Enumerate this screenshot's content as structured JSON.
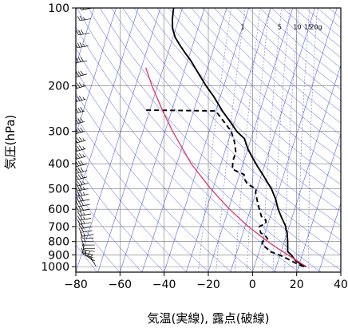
{
  "chart_data": {
    "type": "line",
    "title": "",
    "xlabel": "気温(実線), 露点(破線)",
    "ylabel": "気圧(hPa)",
    "x_axis": {
      "range": [
        -80,
        40
      ],
      "ticks": [
        -80,
        -60,
        -40,
        -20,
        0,
        20,
        40
      ],
      "tick_labels": [
        "−80",
        "−60",
        "−40",
        "−20",
        "0",
        "20",
        "40"
      ]
    },
    "y_axis": {
      "scale": "log-pressure",
      "range": [
        1050,
        100
      ],
      "ticks": [
        1000,
        900,
        800,
        700,
        600,
        500,
        400,
        300,
        200,
        100
      ],
      "tick_labels": [
        "1000",
        "900",
        "800",
        "700",
        "600",
        "500",
        "400",
        "300",
        "200",
        "100"
      ]
    },
    "grid": true,
    "background_lines": {
      "mixing_ratio_labels": [
        "1",
        "5",
        "10",
        "15",
        "20g"
      ],
      "mixing_ratio_values": [
        1,
        5,
        10,
        15,
        20
      ]
    },
    "series": [
      {
        "role": "temperature",
        "style": "solid",
        "color": "#000000",
        "points": [
          [
            1000,
            23.5
          ],
          [
            975,
            20.5
          ],
          [
            950,
            18
          ],
          [
            925,
            16.5
          ],
          [
            900,
            15
          ],
          [
            875,
            13
          ],
          [
            850,
            12.5
          ],
          [
            825,
            12
          ],
          [
            800,
            11.5
          ],
          [
            780,
            11
          ],
          [
            760,
            10.5
          ],
          [
            740,
            10
          ],
          [
            720,
            9
          ],
          [
            700,
            8.5
          ],
          [
            650,
            5.5
          ],
          [
            600,
            2.5
          ],
          [
            550,
            0
          ],
          [
            500,
            -3.5
          ],
          [
            470,
            -6.5
          ],
          [
            440,
            -9.5
          ],
          [
            410,
            -13
          ],
          [
            380,
            -16.5
          ],
          [
            350,
            -20
          ],
          [
            320,
            -23
          ],
          [
            300,
            -27.5
          ],
          [
            280,
            -31
          ],
          [
            250,
            -37
          ],
          [
            220,
            -43
          ],
          [
            200,
            -48
          ],
          [
            180,
            -53
          ],
          [
            160,
            -58.5
          ],
          [
            150,
            -62
          ],
          [
            140,
            -65.5
          ],
          [
            130,
            -69
          ],
          [
            120,
            -71.5
          ],
          [
            110,
            -73
          ],
          [
            100,
            -74
          ]
        ]
      },
      {
        "role": "dewpoint",
        "style": "dashed",
        "color": "#000000",
        "points": [
          [
            1000,
            22.5
          ],
          [
            975,
            19
          ],
          [
            950,
            16
          ],
          [
            925,
            13
          ],
          [
            900,
            9.5
          ],
          [
            875,
            5
          ],
          [
            850,
            3
          ],
          [
            825,
            0.5
          ],
          [
            800,
            0
          ],
          [
            780,
            2
          ],
          [
            760,
            0.5
          ],
          [
            740,
            -2
          ],
          [
            700,
            -3.5
          ],
          [
            680,
            -1
          ],
          [
            660,
            -1.5
          ],
          [
            640,
            -4
          ],
          [
            600,
            -6
          ],
          [
            560,
            -8
          ],
          [
            520,
            -10
          ],
          [
            500,
            -10.5
          ],
          [
            480,
            -15
          ],
          [
            460,
            -17
          ],
          [
            440,
            -18
          ],
          [
            420,
            -24
          ],
          [
            390,
            -25
          ],
          [
            360,
            -25
          ],
          [
            330,
            -27
          ],
          [
            300,
            -30
          ],
          [
            250,
            -40
          ],
          [
            248,
            -73
          ]
        ]
      },
      {
        "role": "parcel",
        "style": "solid",
        "color": "#e0336a",
        "points": [
          [
            1000,
            23.5
          ],
          [
            950,
            18.7
          ],
          [
            900,
            13.5
          ],
          [
            850,
            8
          ],
          [
            800,
            2.5
          ],
          [
            700,
            -8.5
          ],
          [
            600,
            -19.5
          ],
          [
            500,
            -31
          ],
          [
            400,
            -43.5
          ],
          [
            300,
            -56.5
          ],
          [
            250,
            -64
          ],
          [
            200,
            -72.5
          ],
          [
            170,
            -78
          ]
        ]
      }
    ],
    "wind_profile": [
      {
        "p": 1000,
        "spd": 5,
        "dir": 330
      },
      {
        "p": 975,
        "spd": 10,
        "dir": 320
      },
      {
        "p": 950,
        "spd": 10,
        "dir": 300
      },
      {
        "p": 925,
        "spd": 15,
        "dir": 290
      },
      {
        "p": 900,
        "spd": 15,
        "dir": 280
      },
      {
        "p": 875,
        "spd": 10,
        "dir": 280
      },
      {
        "p": 850,
        "spd": 10,
        "dir": 270
      },
      {
        "p": 825,
        "spd": 10,
        "dir": 270
      },
      {
        "p": 800,
        "spd": 15,
        "dir": 270
      },
      {
        "p": 775,
        "spd": 15,
        "dir": 270
      },
      {
        "p": 750,
        "spd": 15,
        "dir": 260
      },
      {
        "p": 725,
        "spd": 20,
        "dir": 260
      },
      {
        "p": 700,
        "spd": 20,
        "dir": 260
      },
      {
        "p": 675,
        "spd": 25,
        "dir": 260
      },
      {
        "p": 650,
        "spd": 25,
        "dir": 260
      },
      {
        "p": 625,
        "spd": 25,
        "dir": 260
      },
      {
        "p": 600,
        "spd": 30,
        "dir": 260
      },
      {
        "p": 575,
        "spd": 30,
        "dir": 260
      },
      {
        "p": 550,
        "spd": 30,
        "dir": 260
      },
      {
        "p": 525,
        "spd": 35,
        "dir": 260
      },
      {
        "p": 500,
        "spd": 35,
        "dir": 260
      },
      {
        "p": 475,
        "spd": 35,
        "dir": 255
      },
      {
        "p": 450,
        "spd": 40,
        "dir": 255
      },
      {
        "p": 425,
        "spd": 40,
        "dir": 255
      },
      {
        "p": 400,
        "spd": 40,
        "dir": 255
      },
      {
        "p": 375,
        "spd": 45,
        "dir": 255
      },
      {
        "p": 350,
        "spd": 45,
        "dir": 255
      },
      {
        "p": 325,
        "spd": 45,
        "dir": 255
      },
      {
        "p": 300,
        "spd": 50,
        "dir": 255
      },
      {
        "p": 275,
        "spd": 50,
        "dir": 255
      },
      {
        "p": 250,
        "spd": 50,
        "dir": 255
      },
      {
        "p": 225,
        "spd": 45,
        "dir": 255
      },
      {
        "p": 200,
        "spd": 45,
        "dir": 255
      },
      {
        "p": 180,
        "spd": 40,
        "dir": 255
      },
      {
        "p": 160,
        "spd": 40,
        "dir": 260
      },
      {
        "p": 140,
        "spd": 35,
        "dir": 260
      },
      {
        "p": 125,
        "spd": 30,
        "dir": 260
      },
      {
        "p": 110,
        "spd": 25,
        "dir": 260
      },
      {
        "p": 100,
        "spd": 20,
        "dir": 260
      }
    ]
  }
}
